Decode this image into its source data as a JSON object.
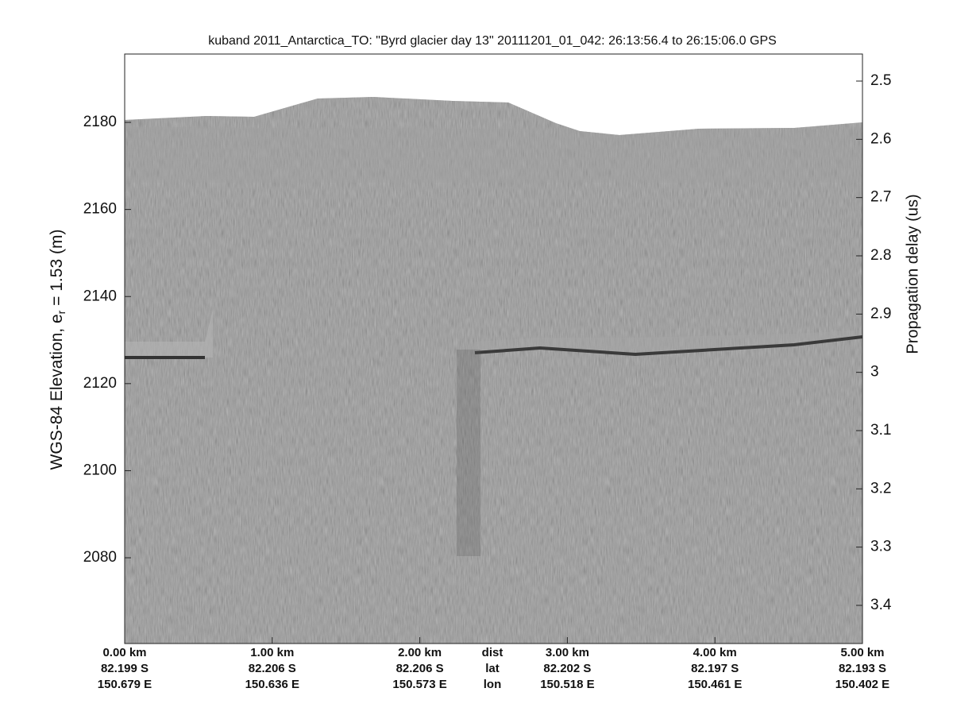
{
  "chart_data": {
    "type": "echogram",
    "title": "kuband 2011_Antarctica_TO: \"Byrd glacier day 13\"  20111201_01_042: 26:13:56.4 to 26:15:06.0 GPS",
    "ylabel": [
      "WGS-84 Elevation, e",
      "r",
      " = 1.53 (m)"
    ],
    "y2label": "Propagation delay (us)",
    "ylim": [
      2060.3,
      2195.7
    ],
    "yticks": [
      2080,
      2100,
      2120,
      2140,
      2160,
      2180
    ],
    "y2lim": [
      3.4655,
      2.4536
    ],
    "y2ticks": [
      2.5,
      2.6,
      2.7,
      2.8,
      2.9,
      3,
      3.1,
      3.2,
      3.3,
      3.4
    ],
    "xlim": [
      0,
      5
    ],
    "xticks": [
      {
        "value": 0,
        "label": "0.00 km"
      },
      {
        "value": 1,
        "label": "1.00 km"
      },
      {
        "value": 2,
        "label": "2.00 km"
      },
      {
        "value": 3,
        "label": "3.00 km"
      },
      {
        "value": 4,
        "label": "4.00 km"
      },
      {
        "value": 5,
        "label": "5.00 km"
      }
    ],
    "lat": [
      "82.199 S",
      "82.206 S",
      "82.206 S",
      "82.202 S",
      "82.197 S",
      "82.193 S"
    ],
    "lon": [
      "150.679 E",
      "150.636 E",
      "150.573 E",
      "150.518 E",
      "150.461 E",
      "150.402 E"
    ],
    "row_names": [
      "dist",
      "lat",
      "lon"
    ]
  }
}
